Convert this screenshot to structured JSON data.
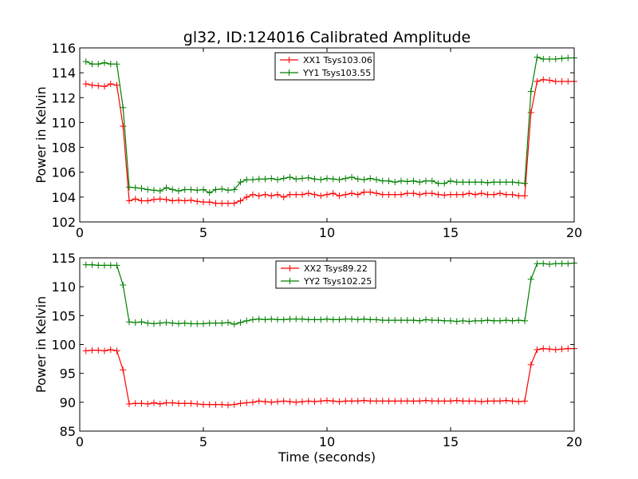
{
  "title": "gl32, ID:124016 Calibrated Amplitude",
  "chart_data": [
    {
      "type": "line",
      "title": "gl32, ID:124016 Calibrated Amplitude",
      "xlabel": "",
      "ylabel": "Power in Kelvin",
      "xlim": [
        0,
        20
      ],
      "ylim": [
        102,
        116
      ],
      "xticks": [
        0,
        5,
        10,
        15,
        20
      ],
      "yticks": [
        102,
        104,
        106,
        108,
        110,
        112,
        114,
        116
      ],
      "grid": false,
      "legend_position": "top-center",
      "x": [
        0.25,
        0.5,
        0.75,
        1.0,
        1.25,
        1.5,
        1.75,
        2.0,
        2.25,
        2.5,
        2.75,
        3.0,
        3.25,
        3.5,
        3.75,
        4.0,
        4.25,
        4.5,
        4.75,
        5.0,
        5.25,
        5.5,
        5.75,
        6.0,
        6.25,
        6.5,
        6.75,
        7.0,
        7.25,
        7.5,
        7.75,
        8.0,
        8.25,
        8.5,
        8.75,
        9.0,
        9.25,
        9.5,
        9.75,
        10.0,
        10.25,
        10.5,
        10.75,
        11.0,
        11.25,
        11.5,
        11.75,
        12.0,
        12.25,
        12.5,
        12.75,
        13.0,
        13.25,
        13.5,
        13.75,
        14.0,
        14.25,
        14.5,
        14.75,
        15.0,
        15.25,
        15.5,
        15.75,
        16.0,
        16.25,
        16.5,
        16.75,
        17.0,
        17.25,
        17.5,
        17.75,
        18.0,
        18.25,
        18.5,
        18.75,
        19.0,
        19.25,
        19.5,
        19.75,
        20.0
      ],
      "series": [
        {
          "name": "XX1 Tsys103.06",
          "color": "#ff0000",
          "values": [
            113.1,
            113.0,
            112.95,
            112.9,
            113.1,
            113.0,
            109.7,
            103.7,
            103.85,
            103.7,
            103.7,
            103.8,
            103.85,
            103.8,
            103.7,
            103.75,
            103.7,
            103.75,
            103.65,
            103.6,
            103.6,
            103.5,
            103.5,
            103.5,
            103.5,
            103.7,
            104.0,
            104.2,
            104.1,
            104.2,
            104.1,
            104.2,
            104.0,
            104.2,
            104.2,
            104.2,
            104.3,
            104.2,
            104.1,
            104.2,
            104.3,
            104.1,
            104.2,
            104.3,
            104.2,
            104.4,
            104.4,
            104.3,
            104.2,
            104.2,
            104.2,
            104.2,
            104.3,
            104.3,
            104.2,
            104.3,
            104.3,
            104.2,
            104.15,
            104.2,
            104.2,
            104.2,
            104.3,
            104.2,
            104.3,
            104.2,
            104.2,
            104.3,
            104.2,
            104.2,
            104.1,
            104.1,
            110.8,
            113.3,
            113.45,
            113.4,
            113.3,
            113.3,
            113.3,
            113.3
          ]
        },
        {
          "name": "YY1 Tsys103.55",
          "color": "#008000",
          "values": [
            114.9,
            114.7,
            114.7,
            114.8,
            114.7,
            114.7,
            111.2,
            104.8,
            104.75,
            104.7,
            104.6,
            104.55,
            104.5,
            104.75,
            104.6,
            104.5,
            104.6,
            104.6,
            104.55,
            104.6,
            104.35,
            104.6,
            104.65,
            104.55,
            104.6,
            105.2,
            105.4,
            105.4,
            105.45,
            105.45,
            105.5,
            105.4,
            105.5,
            105.6,
            105.45,
            105.5,
            105.55,
            105.45,
            105.4,
            105.5,
            105.45,
            105.4,
            105.5,
            105.6,
            105.45,
            105.4,
            105.5,
            105.4,
            105.3,
            105.3,
            105.2,
            105.3,
            105.25,
            105.3,
            105.2,
            105.3,
            105.3,
            105.1,
            105.1,
            105.3,
            105.2,
            105.2,
            105.2,
            105.2,
            105.2,
            105.15,
            105.2,
            105.2,
            105.2,
            105.2,
            105.15,
            105.1,
            112.5,
            115.25,
            115.1,
            115.1,
            115.1,
            115.15,
            115.2,
            115.2
          ]
        }
      ]
    },
    {
      "type": "line",
      "title": "",
      "xlabel": "Time (seconds)",
      "ylabel": "Power in Kelvin",
      "xlim": [
        0,
        20
      ],
      "ylim": [
        85,
        115
      ],
      "xticks": [
        0,
        5,
        10,
        15,
        20
      ],
      "yticks": [
        85,
        90,
        95,
        100,
        105,
        110,
        115
      ],
      "grid": false,
      "legend_position": "top-center",
      "x": [
        0.25,
        0.5,
        0.75,
        1.0,
        1.25,
        1.5,
        1.75,
        2.0,
        2.25,
        2.5,
        2.75,
        3.0,
        3.25,
        3.5,
        3.75,
        4.0,
        4.25,
        4.5,
        4.75,
        5.0,
        5.25,
        5.5,
        5.75,
        6.0,
        6.25,
        6.5,
        6.75,
        7.0,
        7.25,
        7.5,
        7.75,
        8.0,
        8.25,
        8.5,
        8.75,
        9.0,
        9.25,
        9.5,
        9.75,
        10.0,
        10.25,
        10.5,
        10.75,
        11.0,
        11.25,
        11.5,
        11.75,
        12.0,
        12.25,
        12.5,
        12.75,
        13.0,
        13.25,
        13.5,
        13.75,
        14.0,
        14.25,
        14.5,
        14.75,
        15.0,
        15.25,
        15.5,
        15.75,
        16.0,
        16.25,
        16.5,
        16.75,
        17.0,
        17.25,
        17.5,
        17.75,
        18.0,
        18.25,
        18.5,
        18.75,
        19.0,
        19.25,
        19.5,
        19.75,
        20.0
      ],
      "series": [
        {
          "name": "XX2 Tsys89.22",
          "color": "#ff0000",
          "values": [
            98.9,
            99.0,
            99.0,
            98.9,
            99.1,
            98.9,
            95.6,
            89.7,
            89.8,
            89.8,
            89.7,
            89.9,
            89.7,
            89.9,
            89.9,
            89.8,
            89.8,
            89.8,
            89.7,
            89.6,
            89.6,
            89.6,
            89.6,
            89.5,
            89.6,
            89.8,
            89.9,
            90.0,
            90.2,
            90.1,
            90.0,
            90.1,
            90.2,
            90.1,
            90.0,
            90.1,
            90.2,
            90.1,
            90.2,
            90.3,
            90.2,
            90.1,
            90.2,
            90.2,
            90.2,
            90.3,
            90.2,
            90.2,
            90.2,
            90.2,
            90.2,
            90.2,
            90.2,
            90.2,
            90.2,
            90.3,
            90.2,
            90.2,
            90.2,
            90.2,
            90.3,
            90.2,
            90.2,
            90.2,
            90.1,
            90.2,
            90.2,
            90.2,
            90.3,
            90.2,
            90.1,
            90.2,
            96.5,
            99.1,
            99.3,
            99.2,
            99.1,
            99.2,
            99.3,
            99.3
          ]
        },
        {
          "name": "YY2 Tsys102.25",
          "color": "#008000",
          "values": [
            113.8,
            113.8,
            113.7,
            113.7,
            113.7,
            113.7,
            110.3,
            103.9,
            103.8,
            103.9,
            103.7,
            103.6,
            103.7,
            103.8,
            103.7,
            103.6,
            103.7,
            103.6,
            103.6,
            103.6,
            103.7,
            103.7,
            103.7,
            103.8,
            103.5,
            103.8,
            104.1,
            104.3,
            104.4,
            104.3,
            104.4,
            104.3,
            104.3,
            104.4,
            104.4,
            104.4,
            104.3,
            104.3,
            104.3,
            104.4,
            104.3,
            104.3,
            104.4,
            104.4,
            104.3,
            104.4,
            104.3,
            104.3,
            104.2,
            104.2,
            104.2,
            104.2,
            104.2,
            104.2,
            104.1,
            104.3,
            104.2,
            104.2,
            104.1,
            104.1,
            104.0,
            104.1,
            104.0,
            104.1,
            104.1,
            104.2,
            104.1,
            104.1,
            104.2,
            104.1,
            104.2,
            104.1,
            111.3,
            114.0,
            114.0,
            113.9,
            114.0,
            114.0,
            114.0,
            114.1
          ]
        }
      ]
    }
  ]
}
